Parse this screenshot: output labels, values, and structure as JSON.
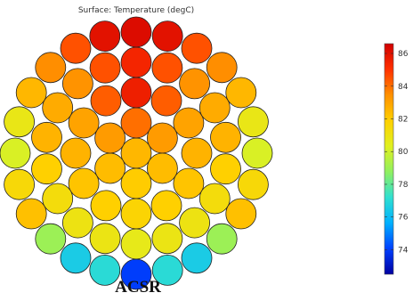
{
  "plot": {
    "title": "Surface: Temperature (degC)",
    "caption": "ACSR",
    "conductor_label": "ACSR",
    "surface_quantity": "Temperature",
    "unit": "degC"
  },
  "colorbar": {
    "min": 72.5,
    "max": 86.6,
    "ticks": [
      86,
      84,
      82,
      80,
      78,
      76,
      74
    ],
    "colormap": [
      "#0000a0",
      "#0040ff",
      "#00b0ff",
      "#30e0d0",
      "#90f060",
      "#e0f020",
      "#ffd000",
      "#ff9000",
      "#ff3000",
      "#d00000"
    ]
  },
  "strands": [
    {
      "layer": "core",
      "count": 1,
      "temp": 82.5
    },
    {
      "layer": "ring-1",
      "count": 6,
      "temp": [
        84.0,
        83.2,
        82.4,
        82.0,
        82.4,
        83.2
      ]
    },
    {
      "layer": "ring-2",
      "count": 12,
      "temp": [
        85.6,
        84.3,
        83.0,
        82.6,
        82.2,
        81.9,
        81.7,
        81.9,
        82.2,
        82.6,
        83.0,
        84.3
      ]
    },
    {
      "layer": "ring-3",
      "count": 18,
      "temp": [
        85.4,
        84.5,
        83.4,
        82.8,
        82.6,
        81.9,
        81.3,
        81.0,
        80.9,
        80.7,
        80.9,
        81.0,
        81.3,
        81.9,
        82.6,
        82.8,
        83.4,
        84.5
      ]
    },
    {
      "layer": "ring-4",
      "count": 24,
      "temp": [
        86.2,
        86.0,
        84.5,
        83.5,
        82.5,
        80.8,
        80.2,
        81.5,
        82.3,
        79.0,
        76.5,
        77.0,
        74.0,
        77.0,
        76.5,
        79.0,
        82.3,
        81.5,
        80.2,
        80.8,
        82.5,
        83.5,
        84.5,
        86.0
      ]
    }
  ]
}
